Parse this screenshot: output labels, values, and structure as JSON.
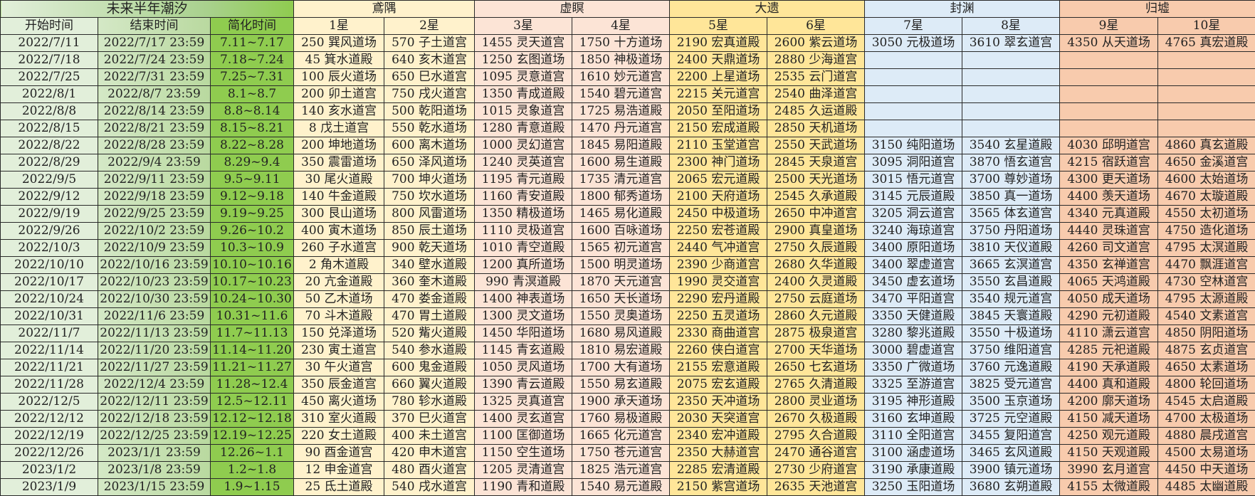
{
  "header": {
    "tide_title": "未来半年潮汐",
    "groups": [
      "鳶隅",
      "虚瞑",
      "大遗",
      "封渊",
      "归墟"
    ],
    "time_columns": [
      "开始时间",
      "结束时间",
      "简化时间"
    ],
    "star_columns": [
      "1星",
      "2星",
      "3星",
      "4星",
      "5星",
      "6星",
      "7星",
      "8星",
      "9星",
      "10星"
    ]
  },
  "colors": {
    "tide": "#8fcc4f",
    "鳶隅": "#fff2cc",
    "虚瞑": "#fce4d6",
    "大遗": "#ffe699",
    "封渊": "#ddebf7",
    "归墟": "#f8cbad"
  },
  "rows": [
    {
      "start": "2022/7/11",
      "end": "2022/7/17 23:59",
      "short": "7.11~7.17",
      "cells": [
        "250 巽风道场",
        "570 子土道宫",
        "1455 灵天道宫",
        "1750 十方道场",
        "2190 宏真道殿",
        "2600 紫云道场",
        "3050 元极道场",
        "3610 翠玄道宫",
        "4350 从天道场",
        "4765 真宏道殿"
      ]
    },
    {
      "start": "2022/7/18",
      "end": "2022/7/24 23:59",
      "short": "7.18~7.24",
      "cells": [
        "45 箕水道殿",
        "640 亥木道宫",
        "1250 玄图道场",
        "1850 神极道场",
        "2400 天鼎道场",
        "2880 少海道宫",
        "",
        "",
        "",
        ""
      ]
    },
    {
      "start": "2022/7/25",
      "end": "2022/7/31 23:59",
      "short": "7.25~7.31",
      "cells": [
        "100 辰火道场",
        "650 巳水道宫",
        "1095 灵意道宫",
        "1610 妙元道宫",
        "2200 上星道场",
        "2535 云门道宫",
        "",
        "",
        "",
        ""
      ]
    },
    {
      "start": "2022/8/1",
      "end": "2022/8/7 23:59",
      "short": "8.1~8.7",
      "cells": [
        "200 卯土道宫",
        "750 戌火道宫",
        "1350 青成道殿",
        "1540 碧元道宫",
        "2215 关元道宫",
        "2540 曲泽道宫",
        "",
        "",
        "",
        ""
      ]
    },
    {
      "start": "2022/8/8",
      "end": "2022/8/14 23:59",
      "short": "8.8~8.14",
      "cells": [
        "140 亥水道宫",
        "500 乾阳道场",
        "1015 灵象道宫",
        "1725 易浩道殿",
        "2050 至阳道场",
        "2485 久运道殿",
        "",
        "",
        "",
        ""
      ]
    },
    {
      "start": "2022/8/15",
      "end": "2022/8/21 23:59",
      "short": "8.15~8.21",
      "cells": [
        "8 戊土道宫",
        "550 乾水道场",
        "1280 青意道殿",
        "1470 丹元道宫",
        "2150 宏成道殿",
        "2850 天机道场",
        "",
        "",
        "",
        ""
      ]
    },
    {
      "start": "2022/8/22",
      "end": "2022/8/28 23:59",
      "short": "8.22~8.28",
      "cells": [
        "200 坤地道场",
        "600 离木道场",
        "1000 灵幻道宫",
        "1845 易阳道殿",
        "2110 玉堂道宫",
        "2550 天武道场",
        "3150 纯阳道场",
        "3540 玄星道殿",
        "4030 邱明道宫",
        "4860 真玄道殿"
      ]
    },
    {
      "start": "2022/8/29",
      "end": "2022/9/4 23:59",
      "short": "8.29~9.4",
      "cells": [
        "350 震雷道场",
        "650 泽风道场",
        "1240 灵英道宫",
        "1600 易生道殿",
        "2300 神门道场",
        "2845 天泉道宫",
        "3095 洞阳道宫",
        "3870 悟玄道宫",
        "4215 宿跃道宫",
        "4650 金溪道宫"
      ]
    },
    {
      "start": "2022/9/5",
      "end": "2022/9/11 23:59",
      "short": "9.5~9.11",
      "cells": [
        "30 尾火道殿",
        "700 坤火道场",
        "1195 青元道殿",
        "1735 清元道宫",
        "2065 宏元道殿",
        "2500 天光道场",
        "3015 悟元道宫",
        "3700 尊妙道场",
        "4300 更天道场",
        "4600 太始道场"
      ]
    },
    {
      "start": "2022/9/12",
      "end": "2022/9/18 23:59",
      "short": "9.12~9.18",
      "cells": [
        "140 牛金道殿",
        "750 坎水道场",
        "1160 青安道殿",
        "1800 郁秀道场",
        "2100 天府道场",
        "2545 久承道殿",
        "3145 元辰道殿",
        "3850 真一道场",
        "4400 羡天道场",
        "4670 太璇道殿"
      ]
    },
    {
      "start": "2022/9/19",
      "end": "2022/9/25 23:59",
      "short": "9.19~9.25",
      "cells": [
        "300 艮山道场",
        "800 风雷道场",
        "1350 精极道场",
        "1465 易化道殿",
        "2450 中极道场",
        "2650 中冲道宫",
        "3205 洞云道宫",
        "3565 体玄道宫",
        "4340 元真道殿",
        "4550 太初道场"
      ]
    },
    {
      "start": "2022/9/26",
      "end": "2022/10/2 23:59",
      "short": "9.26~10.2",
      "cells": [
        "400 寅木道场",
        "850 辰土道场",
        "1110 灵极道宫",
        "1600 百咏道场",
        "2250 宏苍道殿",
        "2900 真皇道场",
        "3240 海琼道宫",
        "3750 丹阳道场",
        "4440 灵珠道宫",
        "4750 造化道场"
      ]
    },
    {
      "start": "2022/10/3",
      "end": "2022/10/9 23:59",
      "short": "10.3~10.9",
      "cells": [
        "260 子水道宫",
        "900 乾天道场",
        "1010 青空道殿",
        "1565 初元道宫",
        "2440 气冲道宫",
        "2750 久辰道殿",
        "3400 原阳道场",
        "3810 天仪道殿",
        "4260 司文道宫",
        "4795 太溟道殿"
      ]
    },
    {
      "start": "2022/10/10",
      "end": "2022/10/16 23:59",
      "short": "10.10~10.16",
      "cells": [
        "2 角木道殿",
        "340 壁水道殿",
        "1200 真所道场",
        "1500 明灵道场",
        "2390 少商道宫",
        "2680 久华道殿",
        "3400 翠虚道宫",
        "3665 玄溟道宫",
        "4350 玄禅道宫",
        "4470 飘涯道宫"
      ]
    },
    {
      "start": "2022/10/17",
      "end": "2022/10/23 23:59",
      "short": "10.17~10.23",
      "cells": [
        "20 亢金道殿",
        "360 奎木道殿",
        "990 青溟道殿",
        "1870 天元道宫",
        "1990 灵交道宫",
        "2400 久灵道殿",
        "3450 虚玄道场",
        "3550 玄昌道殿",
        "4065 天鸿道殿",
        "4730 空林道宫"
      ]
    },
    {
      "start": "2022/10/24",
      "end": "2022/10/30 23:59",
      "short": "10.24~10.30",
      "cells": [
        "50 乙木道场",
        "470 娄金道殿",
        "1400 神表道场",
        "1650 天长道场",
        "2290 宏丹道殿",
        "2750 云庭道场",
        "3470 平阳道宫",
        "3540 规元道宫",
        "4050 成天道场",
        "4795 太源道殿"
      ]
    },
    {
      "start": "2022/10/31",
      "end": "2022/11/6 23:59",
      "short": "10.31~11.6",
      "cells": [
        "70 斗木道殿",
        "470 胃土道殿",
        "1300 灵文道场",
        "1550 灵奥道场",
        "2250 五灵道场",
        "2860 久元道殿",
        "3350 天健道殿",
        "3845 天寰道殿",
        "4290 元初道殿",
        "4540 文素道宫"
      ]
    },
    {
      "start": "2022/11/7",
      "end": "2022/11/13 23:59",
      "short": "11.7~11.13",
      "cells": [
        "150 兑泽道场",
        "520 觜火道殿",
        "1450 华阳道场",
        "1680 易风道殿",
        "2330 商曲道宫",
        "2875 极泉道宫",
        "3280 黎兆道殿",
        "3550 十极道场",
        "4110 潇云道宫",
        "4850 阴阳道场"
      ]
    },
    {
      "start": "2022/11/14",
      "end": "2022/11/20 23:59",
      "short": "11.14~11.20",
      "cells": [
        "230 寅土道宫",
        "540 参水道殿",
        "1145 青玄道殿",
        "1810 易宏道殿",
        "2260 侠白道宫",
        "2700 天华道场",
        "3000 碧虚道宫",
        "3750 维阳道宫",
        "4285 元祀道殿",
        "4875 玄贞道宫"
      ]
    },
    {
      "start": "2022/11/21",
      "end": "2022/11/27 23:59",
      "short": "11.21~11.27",
      "cells": [
        "30 午火道宫",
        "600 鬼金道殿",
        "1050 灵风道场",
        "1700 大有道场",
        "2155 宏意道殿",
        "2650 七玄道场",
        "3350 广微道场",
        "3760 元逸道殿",
        "4190 天承道殿",
        "4650 太素道场"
      ]
    },
    {
      "start": "2022/11/28",
      "end": "2022/12/4 23:59",
      "short": "11.28~12.4",
      "cells": [
        "350 辰金道宫",
        "660 翼火道殿",
        "1390 青云道殿",
        "1550 易玄道殿",
        "2075 宏玄道殿",
        "2765 久清道殿",
        "3325 至游道宫",
        "3825 受元道宫",
        "4400 真和道殿",
        "4800 轮回道场"
      ]
    },
    {
      "start": "2022/12/5",
      "end": "2022/12/11 23:59",
      "short": "12.5~12.11",
      "cells": [
        "450 离火道场",
        "780 轸水道殿",
        "1325 灵真道宫",
        "1900 承天道场",
        "2350 天冲道场",
        "2800 灵业道场",
        "3195 神形道殿",
        "3500 玉京道场",
        "4200 廓天道场",
        "4545 太启道殿"
      ]
    },
    {
      "start": "2022/12/12",
      "end": "2022/12/18 23:59",
      "short": "12.12~12.18",
      "cells": [
        "310 室火道殿",
        "370 巳火道宫",
        "1400 灵玄道宫",
        "1760 易极道殿",
        "2030 天突道宫",
        "2670 久极道殿",
        "3160 玄坤道殿",
        "3725 元空道殿",
        "4150 减天道场",
        "4700 太极道场"
      ]
    },
    {
      "start": "2022/12/19",
      "end": "2022/12/25 23:59",
      "short": "12.19~12.25",
      "cells": [
        "220 女土道殿",
        "400 未土道宫",
        "1100 匡御道场",
        "1665 化元道宫",
        "2340 宏冲道殿",
        "2795 久合道殿",
        "3110 全阳道宫",
        "3455 复阳道宫",
        "4250 观元道殿",
        "4880 晨戌道宫"
      ]
    },
    {
      "start": "2022/12/26",
      "end": "2023/1/1 23:59",
      "short": "12.26~1.1",
      "cells": [
        "90 酉金道宫",
        "420 申木道宫",
        "1150 空生道场",
        "1750 苍元道宫",
        "2350 大赫道宫",
        "2470 通谷道宫",
        "3100 涵虚道场",
        "3465 玄风道殿",
        "4150 天观道殿",
        "4500 太易道场"
      ]
    },
    {
      "start": "2023/1/2",
      "end": "2023/1/8 23:59",
      "short": "1.2~1.8",
      "cells": [
        "12 申金道宫",
        "480 酉火道宫",
        "1205 灵清道宫",
        "1825 浩元道宫",
        "2285 宏清道殿",
        "2730 少府道宫",
        "3190 承康道殿",
        "3900 镇元道场",
        "3990 玄月道宫",
        "4450 中天道场"
      ]
    },
    {
      "start": "2023/1/9",
      "end": "2023/1/15 23:59",
      "short": "1.9~1.15",
      "cells": [
        "25 氐土道殿",
        "540 戌水道宫",
        "1190 青和道殿",
        "1540 易元道殿",
        "2150 紫宫道场",
        "2635 天池道宫",
        "3250 玉阳道场",
        "3680 玄朔道殿",
        "4155 太微道殿",
        "4485 太幽道殿"
      ]
    }
  ]
}
